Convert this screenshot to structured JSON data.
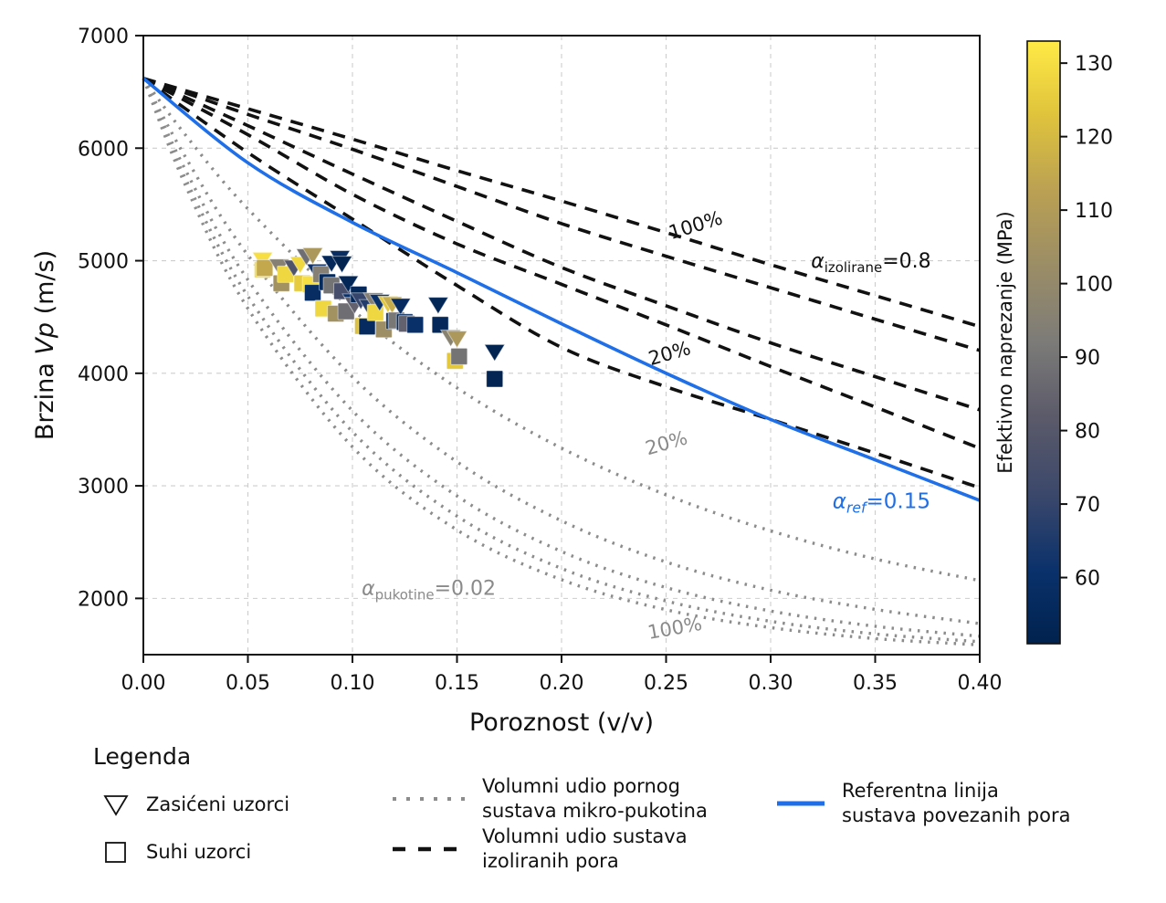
{
  "chart_data": {
    "type": "scatter",
    "title": "",
    "xlabel": "Poroznost (v/v)",
    "ylabel": {
      "prefix": "Brzina ",
      "italic": "Vp",
      "suffix": " (m/s)"
    },
    "xlim": [
      0.0,
      0.4
    ],
    "ylim": [
      1500,
      7000
    ],
    "grid": true,
    "xticks": {
      "values": [
        0.0,
        0.05,
        0.1,
        0.15,
        0.2,
        0.25,
        0.3,
        0.35,
        0.4
      ],
      "labels": [
        "0.00",
        "0.05",
        "0.10",
        "0.15",
        "0.20",
        "0.25",
        "0.30",
        "0.35",
        "0.40"
      ]
    },
    "yticks": {
      "values": [
        2000,
        3000,
        4000,
        5000,
        6000,
        7000
      ],
      "labels": [
        "2000",
        "3000",
        "4000",
        "5000",
        "6000",
        "7000"
      ]
    },
    "colors": {
      "reference_blue": "#1e6fe8",
      "isolated_black": "#111111",
      "micro_gray": "#8c8c8c",
      "annotation_gray": "#8a8a8a",
      "grid": "#cdcdcd"
    },
    "colorbar": {
      "label": "Efektivno naprezanje (MPa)",
      "vmin": 51,
      "vmax": 133,
      "ticks": [
        60,
        70,
        80,
        90,
        100,
        110,
        120,
        130
      ],
      "colormap": "cividis"
    },
    "curves": {
      "isolated_dashed": {
        "name": "Volumni udio sustava izoliranih pora",
        "series": [
          {
            "fraction": "100%",
            "points": [
              [
                0,
                6620
              ],
              [
                0.05,
                6350
              ],
              [
                0.1,
                6080
              ],
              [
                0.15,
                5800
              ],
              [
                0.2,
                5530
              ],
              [
                0.25,
                5250
              ],
              [
                0.3,
                4965
              ],
              [
                0.35,
                4690
              ],
              [
                0.4,
                4415
              ]
            ]
          },
          {
            "fraction": "80%",
            "points": [
              [
                0,
                6620
              ],
              [
                0.05,
                6300
              ],
              [
                0.1,
                5990
              ],
              [
                0.15,
                5660
              ],
              [
                0.2,
                5330
              ],
              [
                0.25,
                5040
              ],
              [
                0.3,
                4760
              ],
              [
                0.35,
                4480
              ],
              [
                0.4,
                4203
              ]
            ]
          },
          {
            "fraction": "60%",
            "points": [
              [
                0,
                6620
              ],
              [
                0.05,
                6200
              ],
              [
                0.1,
                5770
              ],
              [
                0.15,
                5350
              ],
              [
                0.2,
                4940
              ],
              [
                0.25,
                4600
              ],
              [
                0.3,
                4270
              ],
              [
                0.35,
                3970
              ],
              [
                0.4,
                3675
              ]
            ]
          },
          {
            "fraction": "40%",
            "points": [
              [
                0,
                6620
              ],
              [
                0.05,
                6120
              ],
              [
                0.1,
                5590
              ],
              [
                0.15,
                5150
              ],
              [
                0.2,
                4790
              ],
              [
                0.25,
                4430
              ],
              [
                0.3,
                4060
              ],
              [
                0.35,
                3700
              ],
              [
                0.4,
                3333
              ]
            ]
          },
          {
            "fraction": "20%",
            "points": [
              [
                0,
                6620
              ],
              [
                0.05,
                5960
              ],
              [
                0.1,
                5370
              ],
              [
                0.15,
                4780
              ],
              [
                0.2,
                4230
              ],
              [
                0.25,
                3880
              ],
              [
                0.3,
                3590
              ],
              [
                0.35,
                3290
              ],
              [
                0.4,
                2983
              ]
            ]
          }
        ]
      },
      "micro_dotted": {
        "name": "Volumni udio pornog sustava mikro-pukotina",
        "series": [
          {
            "fraction": "20%",
            "points": [
              [
                0,
                6620
              ],
              [
                0.02,
                6121
              ],
              [
                0.05,
                5460
              ],
              [
                0.1,
                4565
              ],
              [
                0.15,
                3870
              ],
              [
                0.2,
                3335
              ],
              [
                0.25,
                2920
              ],
              [
                0.3,
                2600
              ],
              [
                0.35,
                2350
              ],
              [
                0.4,
                2158
              ]
            ]
          },
          {
            "fraction": "40%",
            "points": [
              [
                0,
                6620
              ],
              [
                0.02,
                5925
              ],
              [
                0.05,
                5050
              ],
              [
                0.1,
                3967
              ],
              [
                0.15,
                3213
              ],
              [
                0.2,
                2689
              ],
              [
                0.25,
                2323
              ],
              [
                0.3,
                2073
              ],
              [
                0.35,
                1902
              ],
              [
                0.4,
                1776
              ]
            ]
          },
          {
            "fraction": "60%",
            "points": [
              [
                0,
                6620
              ],
              [
                0.02,
                5811
              ],
              [
                0.05,
                4830
              ],
              [
                0.1,
                3667
              ],
              [
                0.15,
                2910
              ],
              [
                0.2,
                2417
              ],
              [
                0.25,
                2096
              ],
              [
                0.3,
                1888
              ],
              [
                0.35,
                1752
              ],
              [
                0.4,
                1664
              ]
            ]
          },
          {
            "fraction": "80%",
            "points": [
              [
                0,
                6620
              ],
              [
                0.02,
                5734
              ],
              [
                0.05,
                4684
              ],
              [
                0.1,
                3480
              ],
              [
                0.15,
                2731
              ],
              [
                0.2,
                2266
              ],
              [
                0.25,
                1977
              ],
              [
                0.3,
                1796
              ],
              [
                0.35,
                1684
              ],
              [
                0.4,
                1615
              ]
            ]
          },
          {
            "fraction": "100%",
            "points": [
              [
                0,
                6620
              ],
              [
                0.02,
                5675
              ],
              [
                0.05,
                4575
              ],
              [
                0.1,
                3346
              ],
              [
                0.15,
                2608
              ],
              [
                0.2,
                2166
              ],
              [
                0.25,
                1899
              ],
              [
                0.3,
                1740
              ],
              [
                0.35,
                1643
              ],
              [
                0.4,
                1587
              ]
            ]
          }
        ]
      },
      "reference": {
        "name": "Referentna linija sustava povezanih pora",
        "points": [
          [
            0,
            6620
          ],
          [
            0.05,
            5870
          ],
          [
            0.1,
            5340
          ],
          [
            0.15,
            4894
          ],
          [
            0.2,
            4440
          ],
          [
            0.25,
            4000
          ],
          [
            0.3,
            3590
          ],
          [
            0.35,
            3230
          ],
          [
            0.4,
            2870
          ]
        ]
      }
    },
    "annotations": [
      {
        "text": "100%",
        "phi": 0.265,
        "vp": 5260,
        "rot": -17,
        "color": "#111111",
        "size": 21
      },
      {
        "alpha": true,
        "sub": "izolirane",
        "sub_italic": false,
        "rest": "=0.8",
        "phi": 0.348,
        "vp": 4940,
        "rot": 0,
        "color": "#111111",
        "size": 22
      },
      {
        "text": "20%",
        "phi": 0.2525,
        "vp": 4122,
        "rot": -16,
        "color": "#111111",
        "size": 21
      },
      {
        "alpha": true,
        "sub": "ref",
        "sub_italic": true,
        "rest": "=0.15",
        "phi": 0.353,
        "vp": 2800,
        "rot": 0,
        "color": "#1e6fe8",
        "size": 23
      },
      {
        "text": "20%",
        "phi": 0.251,
        "vp": 3325,
        "rot": -16,
        "color": "#8a8a8a",
        "size": 21
      },
      {
        "alpha": true,
        "sub": "pukotine",
        "sub_italic": false,
        "rest": "=0.02",
        "phi": 0.1365,
        "vp": 2030,
        "rot": 0,
        "color": "#8a8a8a",
        "size": 22
      },
      {
        "text": "100%",
        "phi": 0.2547,
        "vp": 1680,
        "rot": -10,
        "color": "#8a8a8a",
        "size": 21
      }
    ],
    "scatter": {
      "note": "columns: porosity (v/v), Vp (m/s), effective stress (MPa), sample type",
      "points": [
        [
          0.057,
          5010,
          130,
          "sat"
        ],
        [
          0.057,
          4920,
          130,
          "dry"
        ],
        [
          0.058,
          4935,
          115,
          "dry"
        ],
        [
          0.065,
          4950,
          95,
          "sat"
        ],
        [
          0.066,
          4800,
          105,
          "dry"
        ],
        [
          0.068,
          4880,
          128,
          "dry"
        ],
        [
          0.072,
          4940,
          78,
          "sat"
        ],
        [
          0.075,
          4970,
          128,
          "sat"
        ],
        [
          0.076,
          4800,
          125,
          "dry"
        ],
        [
          0.078,
          5040,
          88,
          "sat"
        ],
        [
          0.08,
          4790,
          130,
          "dry"
        ],
        [
          0.081,
          5050,
          108,
          "sat"
        ],
        [
          0.081,
          4715,
          58,
          "dry"
        ],
        [
          0.083,
          4905,
          62,
          "sat"
        ],
        [
          0.085,
          4880,
          95,
          "dry"
        ],
        [
          0.086,
          4575,
          128,
          "dry"
        ],
        [
          0.088,
          4810,
          56,
          "dry"
        ],
        [
          0.09,
          4980,
          55,
          "sat"
        ],
        [
          0.09,
          4780,
          90,
          "dry"
        ],
        [
          0.092,
          4530,
          105,
          "dry"
        ],
        [
          0.094,
          5025,
          58,
          "sat"
        ],
        [
          0.095,
          4975,
          52,
          "sat"
        ],
        [
          0.095,
          4730,
          75,
          "dry"
        ],
        [
          0.097,
          4550,
          88,
          "dry"
        ],
        [
          0.098,
          4800,
          54,
          "sat"
        ],
        [
          0.1,
          4640,
          60,
          "sat"
        ],
        [
          0.101,
          4610,
          84,
          "sat"
        ],
        [
          0.103,
          4700,
          55,
          "dry"
        ],
        [
          0.104,
          4650,
          70,
          "sat"
        ],
        [
          0.105,
          4420,
          122,
          "dry"
        ],
        [
          0.107,
          4415,
          57,
          "dry"
        ],
        [
          0.108,
          4590,
          66,
          "sat"
        ],
        [
          0.11,
          4650,
          95,
          "sat"
        ],
        [
          0.111,
          4540,
          128,
          "dry"
        ],
        [
          0.113,
          4635,
          60,
          "sat"
        ],
        [
          0.115,
          4390,
          103,
          "dry"
        ],
        [
          0.117,
          4620,
          124,
          "sat"
        ],
        [
          0.119,
          4615,
          116,
          "sat"
        ],
        [
          0.12,
          4465,
          54,
          "dry"
        ],
        [
          0.121,
          4470,
          91,
          "dry"
        ],
        [
          0.123,
          4600,
          57,
          "sat"
        ],
        [
          0.125,
          4455,
          58,
          "dry"
        ],
        [
          0.126,
          4440,
          84,
          "dry"
        ],
        [
          0.13,
          4430,
          60,
          "dry"
        ],
        [
          0.141,
          4610,
          54,
          "sat"
        ],
        [
          0.142,
          4430,
          55,
          "dry"
        ],
        [
          0.147,
          4320,
          96,
          "sat"
        ],
        [
          0.15,
          4310,
          108,
          "sat"
        ],
        [
          0.149,
          4110,
          124,
          "dry"
        ],
        [
          0.151,
          4150,
          90,
          "dry"
        ],
        [
          0.168,
          4190,
          52,
          "sat"
        ],
        [
          0.168,
          3950,
          53,
          "dry"
        ]
      ]
    }
  },
  "legend": {
    "title": "Legenda",
    "saturated_label": "Zasićeni uzorci",
    "dry_label": "Suhi uzorci",
    "micro_label_line1": "Volumni udio pornog",
    "micro_label_line2": "sustava mikro-pukotina",
    "isolated_label_line1": "Volumni udio sustava",
    "isolated_label_line2": "izoliranih pora",
    "reference_label_line1": "Referentna linija",
    "reference_label_line2": "sustava povezanih pora"
  }
}
